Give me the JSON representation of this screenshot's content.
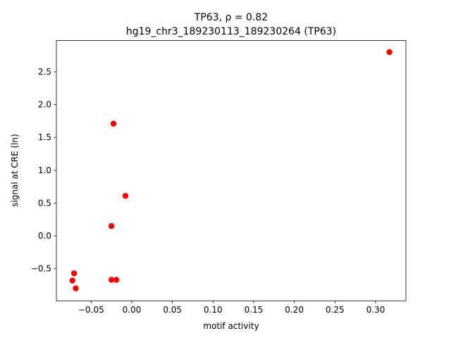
{
  "chart_data": {
    "type": "scatter",
    "title": "TP63, ρ = 0.82",
    "subtitle": "hg19_chr3_189230113_189230264 (TP63)",
    "x_label": "motif activity",
    "y_label": "signal at CRE (ln)",
    "color": "#ff0000",
    "x": [
      0.317,
      -0.0225,
      -0.0078,
      -0.025,
      -0.071,
      -0.073,
      -0.069,
      -0.025,
      -0.019
    ],
    "y": [
      2.8,
      1.71,
      0.61,
      0.15,
      -0.57,
      -0.68,
      -0.8,
      -0.67,
      -0.67
    ],
    "xlim": [
      -0.0928,
      0.3373
    ],
    "ylim": [
      -0.989,
      2.976
    ],
    "xticks": [
      {
        "value": -0.05,
        "label": "−0.05"
      },
      {
        "value": 0,
        "label": "0.00"
      },
      0.05,
      {
        "value": 0.1,
        "label": "0.10"
      },
      0.15,
      {
        "value": 0.2,
        "label": "0.20"
      },
      0.25,
      {
        "value": 0.3,
        "label": "0.30"
      }
    ],
    "yticks": [
      {
        "value": -0.5,
        "label": "−0.5"
      },
      {
        "value": 0,
        "label": "0.0"
      },
      0.5,
      {
        "value": 1,
        "label": "1.0"
      },
      1.5,
      {
        "value": 2,
        "label": "2.0"
      },
      2.5
    ]
  }
}
